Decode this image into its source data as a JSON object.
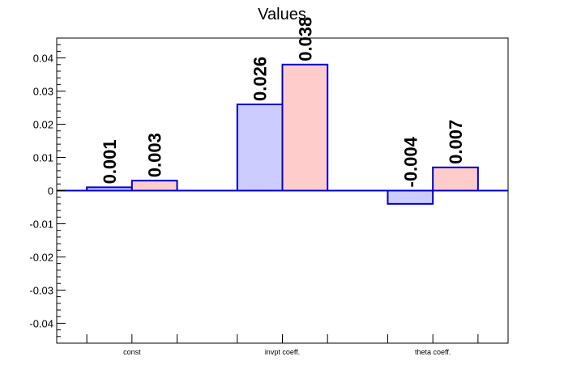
{
  "chart_data": {
    "type": "bar",
    "title": "Values",
    "categories": [
      "const",
      "invpt coeff.",
      "theta coeff."
    ],
    "series": [
      {
        "values": [
          0.001,
          0.026,
          -0.004
        ],
        "labels": [
          "0.001",
          "0.026",
          "-0.004"
        ],
        "fill": "#ccccff",
        "stroke": "#0000cc"
      },
      {
        "values": [
          0.003,
          0.038,
          0.007
        ],
        "labels": [
          "0.003",
          "0.038",
          "0.007"
        ],
        "fill": "#ffcccc",
        "stroke": "#0000cc"
      }
    ],
    "ylim": [
      -0.046,
      0.046
    ],
    "yticks": [
      -0.04,
      -0.03,
      -0.02,
      -0.01,
      0,
      0.01,
      0.02,
      0.03,
      0.04
    ],
    "ytick_labels": [
      "-0.04",
      "-0.03",
      "-0.02",
      "-0.01",
      "0",
      "0.01",
      "0.02",
      "0.03",
      "0.04"
    ],
    "xlabel": "",
    "ylabel": "",
    "grid": false,
    "legend": "none",
    "colors": {
      "axis": "#000000",
      "zero_line": "#0000cc"
    }
  }
}
